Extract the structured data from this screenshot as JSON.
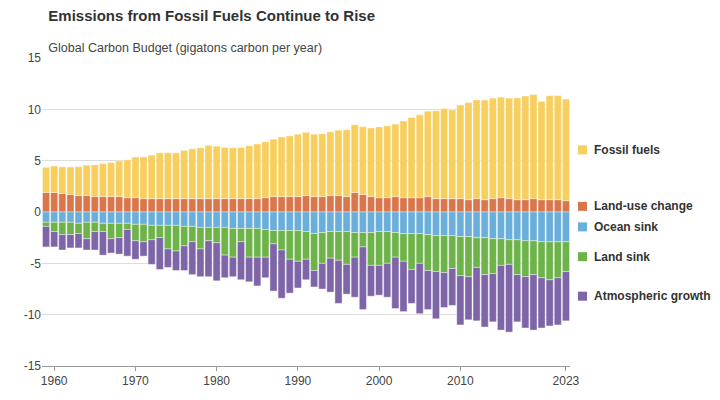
{
  "chart_data": {
    "type": "bar",
    "stacked": true,
    "grid": true,
    "title": "Emissions from Fossil Fuels Continue to Rise",
    "subtitle": "Global Carbon Budget (gigatons carbon per year)",
    "x": [
      1959,
      1960,
      1961,
      1962,
      1963,
      1964,
      1965,
      1966,
      1967,
      1968,
      1969,
      1970,
      1971,
      1972,
      1973,
      1974,
      1975,
      1976,
      1977,
      1978,
      1979,
      1980,
      1981,
      1982,
      1983,
      1984,
      1985,
      1986,
      1987,
      1988,
      1989,
      1990,
      1991,
      1992,
      1993,
      1994,
      1995,
      1996,
      1997,
      1998,
      1999,
      2000,
      2001,
      2002,
      2003,
      2004,
      2005,
      2006,
      2007,
      2008,
      2009,
      2010,
      2011,
      2012,
      2013,
      2014,
      2015,
      2016,
      2017,
      2018,
      2019,
      2020,
      2021,
      2022,
      2023
    ],
    "xlim": [
      1958.5,
      2023.5
    ],
    "xticks": [
      1960,
      1970,
      1980,
      1990,
      2000,
      2010,
      2023
    ],
    "ylim": [
      -15,
      15
    ],
    "yticks": [
      -15,
      -10,
      -5,
      0,
      5,
      10,
      15
    ],
    "series": [
      {
        "name": "Land-use change",
        "color": "#d9764c",
        "values": [
          1.9,
          1.9,
          1.8,
          1.7,
          1.6,
          1.6,
          1.5,
          1.5,
          1.5,
          1.5,
          1.4,
          1.4,
          1.3,
          1.3,
          1.3,
          1.3,
          1.3,
          1.3,
          1.3,
          1.3,
          1.3,
          1.3,
          1.3,
          1.3,
          1.3,
          1.3,
          1.3,
          1.4,
          1.5,
          1.5,
          1.5,
          1.5,
          1.6,
          1.5,
          1.5,
          1.6,
          1.6,
          1.5,
          1.9,
          1.7,
          1.5,
          1.4,
          1.4,
          1.5,
          1.4,
          1.4,
          1.4,
          1.5,
          1.3,
          1.3,
          1.3,
          1.3,
          1.2,
          1.3,
          1.2,
          1.3,
          1.4,
          1.3,
          1.2,
          1.2,
          1.3,
          1.2,
          1.2,
          1.2,
          1.1
        ]
      },
      {
        "name": "Fossil fuels",
        "color": "#f7cf5f",
        "values": [
          2.45,
          2.58,
          2.59,
          2.68,
          2.82,
          2.96,
          3.08,
          3.22,
          3.32,
          3.48,
          3.68,
          3.95,
          4.07,
          4.24,
          4.47,
          4.47,
          4.46,
          4.7,
          4.86,
          4.95,
          5.19,
          5.11,
          4.99,
          4.96,
          4.97,
          5.15,
          5.33,
          5.44,
          5.6,
          5.81,
          5.92,
          6.08,
          6.17,
          6.08,
          6.12,
          6.21,
          6.37,
          6.51,
          6.6,
          6.61,
          6.68,
          6.89,
          6.99,
          7.06,
          7.46,
          7.81,
          8.07,
          8.32,
          8.56,
          8.77,
          8.64,
          9.12,
          9.46,
          9.61,
          9.7,
          9.79,
          9.78,
          9.79,
          9.91,
          10.1,
          10.14,
          9.57,
          10.13,
          10.14,
          9.9
        ]
      },
      {
        "name": "Ocean sink",
        "color": "#6aaedb",
        "values": [
          -1.0,
          -1.0,
          -1.0,
          -1.0,
          -1.1,
          -1.0,
          -1.0,
          -1.1,
          -1.1,
          -1.1,
          -1.1,
          -1.2,
          -1.2,
          -1.3,
          -1.3,
          -1.3,
          -1.3,
          -1.4,
          -1.4,
          -1.5,
          -1.5,
          -1.5,
          -1.5,
          -1.6,
          -1.6,
          -1.6,
          -1.6,
          -1.7,
          -1.8,
          -1.8,
          -1.8,
          -1.8,
          -1.9,
          -2.1,
          -2.0,
          -1.9,
          -1.9,
          -1.9,
          -2.0,
          -2.0,
          -2.0,
          -1.9,
          -1.9,
          -2.0,
          -2.1,
          -2.1,
          -2.1,
          -2.2,
          -2.3,
          -2.3,
          -2.3,
          -2.4,
          -2.4,
          -2.5,
          -2.5,
          -2.6,
          -2.6,
          -2.7,
          -2.7,
          -2.8,
          -2.8,
          -2.9,
          -2.9,
          -2.9,
          -2.9
        ]
      },
      {
        "name": "Land sink",
        "color": "#6db34a",
        "values": [
          -0.4,
          -0.9,
          -1.2,
          -1.2,
          -1.0,
          -1.6,
          -0.9,
          -0.8,
          -1.5,
          -1.4,
          -0.6,
          -1.6,
          -1.7,
          -1.4,
          -1.2,
          -2.3,
          -2.5,
          -1.9,
          -1.5,
          -2.1,
          -1.3,
          -1.5,
          -2.7,
          -2.8,
          -1.3,
          -2.8,
          -2.8,
          -2.7,
          -1.3,
          -1.9,
          -2.8,
          -3.0,
          -2.7,
          -3.6,
          -3.0,
          -2.6,
          -2.8,
          -3.2,
          -2.4,
          -1.4,
          -3.2,
          -3.3,
          -3.1,
          -2.4,
          -2.7,
          -3.5,
          -2.9,
          -3.5,
          -3.5,
          -3.6,
          -3.2,
          -3.8,
          -3.9,
          -2.9,
          -3.6,
          -3.4,
          -2.6,
          -2.4,
          -3.4,
          -3.5,
          -3.3,
          -3.5,
          -3.7,
          -3.5,
          -2.9
        ]
      },
      {
        "name": "Atmospheric growth",
        "color": "#7d65a8",
        "values": [
          -2.0,
          -1.5,
          -1.5,
          -1.3,
          -1.4,
          -1.1,
          -1.8,
          -2.3,
          -1.4,
          -1.6,
          -2.6,
          -1.8,
          -1.4,
          -2.4,
          -3.1,
          -1.8,
          -1.9,
          -2.4,
          -3.2,
          -2.7,
          -3.5,
          -3.7,
          -2.2,
          -1.9,
          -3.7,
          -2.4,
          -2.8,
          -2.0,
          -4.6,
          -4.7,
          -3.3,
          -2.6,
          -2.0,
          -1.6,
          -2.5,
          -3.3,
          -4.2,
          -2.9,
          -3.9,
          -6.1,
          -3.0,
          -2.9,
          -3.3,
          -5.0,
          -4.9,
          -3.3,
          -4.9,
          -3.8,
          -4.6,
          -3.4,
          -3.6,
          -4.8,
          -4.2,
          -5.2,
          -5.1,
          -4.7,
          -6.3,
          -6.6,
          -4.6,
          -5.0,
          -5.4,
          -4.9,
          -4.5,
          -4.6,
          -4.8
        ]
      }
    ]
  }
}
